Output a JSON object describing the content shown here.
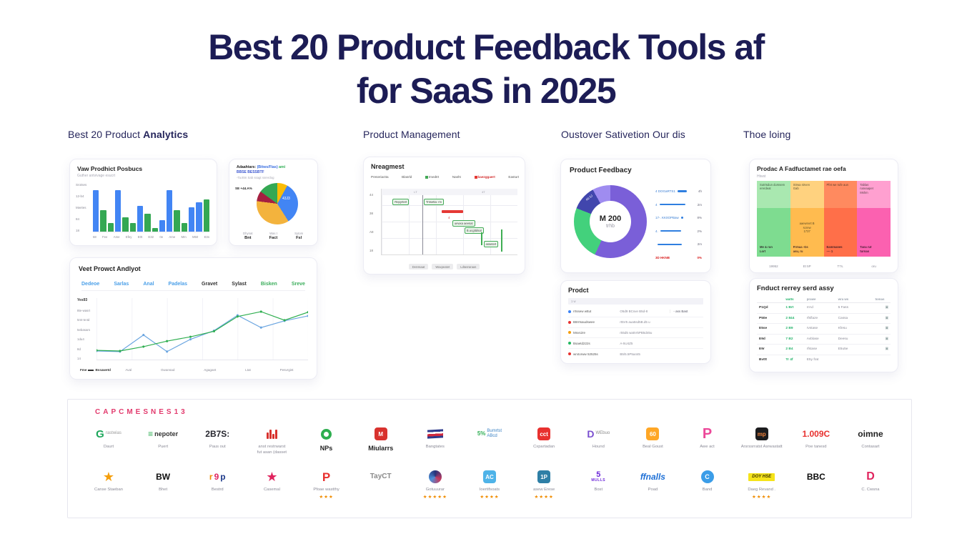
{
  "title": {
    "line1": "Best 20 Product Feedback Tools af",
    "line2": "for SaaS in 2025"
  },
  "colors": {
    "title_navy": "#1c1c55",
    "bar_blue": "#4285f4",
    "bar_green": "#34a853",
    "logo_header_pink": "#e23a6d"
  },
  "headers": [
    {
      "pre": "Best 20 Product ",
      "bold": "Analytics"
    },
    {
      "pre": "Product Management",
      "bold": ""
    },
    {
      "pre": "Oustover Sativetion Our dis",
      "bold": ""
    },
    {
      "pre": "Thoe loing",
      "bold": ""
    }
  ],
  "bar_card": {
    "title": "Vaw Prodhict Posbucs",
    "subtitle": "Guther antvivage esucrt"
  },
  "pie_card": {
    "t1a": "Adaahtars:",
    "t1b": "(Bitws/Fias)",
    "t1c": "ami",
    "t2": "BBSE BESSBTF",
    "subtitle": "-Ta.8tm Sab ssagt ssrerdog",
    "side_label": "SE +44.A%",
    "inner_label": "43J3",
    "stats": [
      {
        "label": "Dhynat",
        "value": "Bnt"
      },
      {
        "label": "Was t",
        "value": "Fact"
      },
      {
        "label": "Sytom",
        "value": "Fsl"
      }
    ]
  },
  "line_card": {
    "title": "Veet Prowct Andlyot",
    "tabs": [
      {
        "label": "Dedeoe",
        "color": "blue"
      },
      {
        "label": "Sarlas",
        "color": "blue"
      },
      {
        "label": "Anal",
        "color": "blue"
      },
      {
        "label": "Padelas",
        "color": "blue"
      },
      {
        "label": "Gravet",
        "color": "dark"
      },
      {
        "label": "Sylast",
        "color": "dark"
      },
      {
        "label": "Bisken",
        "color": "green"
      },
      {
        "label": "Sreve",
        "color": "green"
      }
    ],
    "legend_prefix": "Fme",
    "legend": "Bssawetd"
  },
  "gantt_card": {
    "title": "Nreagmest",
    "legend": [
      {
        "label": "Preseriactta"
      },
      {
        "label": "Blasrld"
      },
      {
        "label": "Imedtrt",
        "square": "#43a957"
      },
      {
        "label": "Nasht"
      },
      {
        "label": "baezggaert",
        "square": "#e53935",
        "red": true
      },
      {
        "label": "Easturt"
      }
    ],
    "band": [
      "LT",
      "4T"
    ],
    "y_labels": [
      "44",
      "38",
      "A8",
      "18"
    ],
    "chips": [
      "Repyrtert",
      "Trssetta: rrv",
      "uewxa aeesat",
      "B.ucgttdsat",
      "assetert"
    ],
    "red_label": "4",
    "bottom": [
      "Denssaat",
      "Waxpeatet",
      "Ldtasraraas"
    ]
  },
  "donut_card": {
    "title": "Product Feedbacy",
    "center_value": "M 200",
    "center_sub": "trhb",
    "seg_label": "Ab 5J",
    "rows": [
      {
        "pre": "4",
        "label": "DOGaRTS1",
        "bar": 58,
        "pct": "4h",
        "red": false
      },
      {
        "pre": "4",
        "label": "",
        "bar": 76,
        "pct": "2m",
        "red": false
      },
      {
        "pre": "17-.",
        "label": "KK0OPBaw",
        "bar": 20,
        "pct": "8%",
        "red": false
      },
      {
        "pre": "4.",
        "label": "",
        "bar": 64,
        "pct": "2%",
        "red": false
      },
      {
        "pre": "",
        "label": "",
        "bar": 68,
        "pct": "2m",
        "red": false
      },
      {
        "pre": "3D",
        "label": "HKNB",
        "bar": 0,
        "pct": "0%",
        "red": true
      }
    ]
  },
  "ptable_card": {
    "title": "Prodct",
    "header": "1 w",
    "rows": [
      {
        "dot": "#3b82f6",
        "left": "rrtssew wttut",
        "mid": "O5d9 BCsve B5d-8",
        "right": "- ass Bast"
      },
      {
        "dot": "#e8312f",
        "left": "B8rrtsaudswee",
        "mid": "rt5V5 aua5sd5B.d5 u",
        "right": ""
      },
      {
        "dot": "#f59e0b",
        "left": "Msvs2re",
        "mid": "r55d5 wa5V5PB5d45u",
        "right": ""
      },
      {
        "dot": "#22b860",
        "left": "Bsaetd222s",
        "mid": "A-5U4Z5",
        "right": ""
      },
      {
        "dot": "#e8312f",
        "left": "wrxtorww 52525s",
        "mid": "B5/5.5P5a445",
        "right": ""
      }
    ]
  },
  "matrix_card": {
    "title": "Prodac A Fadfuctamet rae oefa",
    "subtitle": "Htwst",
    "columns": [
      {
        "light": "#a9e8b0",
        "strong": "#7edc90",
        "top": "Sutrtsdun durssem\nererdeat",
        "mid": "",
        "bottom": "Me & run\nLort"
      },
      {
        "light": "#ffd27f",
        "strong": "#ffbb4f",
        "top": "Strwa strven\nGab",
        "mid": "aaewnvrt B\nscrew\n1737",
        "bottom": "Frmua -Gs\nasu, ru"
      },
      {
        "light": "#ff8a5f",
        "strong": "#ff6f49",
        "top": "Pfet we rufe aun",
        "mid": "",
        "bottom": "Eammanes\n-~- 1"
      },
      {
        "light": "#ffa0d0",
        "strong": "#fb61b0",
        "top": "Tablas\nruseaapet\nMshm",
        "mid": "",
        "bottom": "Tana rut\nturnas"
      }
    ],
    "axis": [
      "19952",
      "Et 5P",
      "T7s.",
      "oru"
    ]
  },
  "review_card": {
    "title": "Fnduct rerrey serd assy",
    "headers": [
      "",
      "watts",
      "prawe",
      "wra ws",
      "tomas"
    ],
    "rows": [
      [
        "P1Qd",
        "1 Brt",
        "rrAd",
        "5 Fass",
        "▣"
      ],
      [
        "P50e",
        "2 844",
        "rfsflaze",
        "Cassa",
        "▣"
      ],
      [
        "E5se",
        "2 B9",
        "rvstase",
        "Kfesu",
        "▣"
      ],
      [
        "E9d",
        "7 B2",
        "Avblase",
        "Deesu",
        "▣"
      ],
      [
        "E9r",
        "2 B4",
        "rfstase",
        "E5u5e",
        "▣"
      ],
      [
        "Bvttt",
        "Tr 4f",
        "E5y frat",
        "",
        ""
      ]
    ]
  },
  "logo_wall": {
    "header": "CAPCMESNES13",
    "row1": [
      {
        "type": "letterext",
        "icon": "green-g-logo-icon",
        "main": "G",
        "main_color": "#1ea75c",
        "main_size": 15,
        "extra": "rastwias",
        "extra_color": "#9a9a9a",
        "caption": "Daurt"
      },
      {
        "type": "letterext",
        "icon": "hamburger-lines-icon",
        "main": "≡",
        "main_color": "#2fae54",
        "main_size": 12,
        "extra": "nepoter",
        "extra_bold": true,
        "caption": "Puert"
      },
      {
        "type": "plain",
        "icon": "abts-text-logo",
        "main": "2B7S:",
        "color": "#26262e",
        "size": 12,
        "caption": "Paus out"
      },
      {
        "type": "bars",
        "icon": "red-bars-icon",
        "caption": "anst restrwarst\nfut asan (dasset"
      },
      {
        "type": "ring",
        "icon": "green-ring-icon",
        "caption": "NPs",
        "caption_big": true
      },
      {
        "type": "square",
        "icon": "red-m-square-icon",
        "main": "M",
        "bg": "#d8322e",
        "caption": "Miularrs",
        "caption_big": true
      },
      {
        "type": "flag",
        "icon": "striped-flag-icon",
        "caption": "Bangtates"
      },
      {
        "type": "letterext",
        "icon": "percent-badge-icon",
        "main": "5%",
        "main_color": "#2fae54",
        "main_size": 8,
        "extra": "Bumrtst\nABcd",
        "extra_color": "#3b82c4",
        "caption": ""
      },
      {
        "type": "square",
        "icon": "cct-square-icon",
        "main": "cct",
        "bg": "#e8312f",
        "caption": "Cxpartadan"
      },
      {
        "type": "letterext",
        "icon": "purple-d-logo-icon",
        "main": "D",
        "main_color": "#7a4fd0",
        "main_size": 14,
        "extra": "WEbuo",
        "extra_color": "#8a8a8a",
        "caption": "Hound"
      },
      {
        "type": "square",
        "icon": "orange-square-icon",
        "main": "60",
        "bg": "#ffa726",
        "caption": "Beal Goust"
      },
      {
        "type": "plain",
        "icon": "pink-p-logo-icon",
        "main": "P",
        "color": "#ec4899",
        "size": 20,
        "caption": "Awe act"
      },
      {
        "type": "square",
        "icon": "mp-square-icon",
        "main": "mp",
        "bg": "#1c1c1e",
        "fg": "#f0823c",
        "caption": "Arsrssrratst Asrwastatt"
      },
      {
        "type": "plain",
        "icon": "1009c-text-logo",
        "main": "1.009C",
        "color": "#e8312f",
        "size": 12,
        "caption": "Poe tanesd"
      },
      {
        "type": "plain",
        "icon": "oimne-text-logo",
        "main": "oimne",
        "color": "#1f1f1f",
        "size": 12,
        "caption": "Contasart"
      }
    ],
    "row2": [
      {
        "type": "star",
        "icon": "orange-star-icon",
        "color": "#f59e0b",
        "caption": "Canse Staeban"
      },
      {
        "type": "plain",
        "icon": "bw-text-logo",
        "main": "BW",
        "color": "#111111",
        "size": 12,
        "caption": "Bhet"
      },
      {
        "type": "multi",
        "icon": "rgp-text-logo",
        "letters": [
          [
            "r",
            "#f08c00"
          ],
          [
            "9",
            "#e0245e"
          ],
          [
            "p",
            "#1e3a8a"
          ]
        ],
        "caption": "Bestrd"
      },
      {
        "type": "star",
        "icon": "red-star-icon",
        "color": "#e0245e",
        "caption": "Casemal"
      },
      {
        "type": "plain",
        "icon": "red-p-logo-icon",
        "main": "P",
        "color": "#e8312f",
        "size": 17,
        "caption": "Pfoae wastthy",
        "stars": 3
      },
      {
        "type": "plain",
        "icon": "tayct-text-logo",
        "main": "TayCT",
        "color": "#8a8a8a",
        "size": 10,
        "caption": ""
      },
      {
        "type": "swirl",
        "icon": "swirl-circle-icon",
        "caption": "Gotuuurar",
        "stars": 5
      },
      {
        "type": "square",
        "icon": "ac-square-icon",
        "main": "AC",
        "bg": "#4fb3e8",
        "caption": "Ioertifsoats",
        "stars": 4
      },
      {
        "type": "square",
        "icon": "1p-square-icon",
        "main": "1P",
        "bg": "#2e7fa6",
        "caption": "asew Erese",
        "stars": 4
      },
      {
        "type": "stack",
        "icon": "5mulls-text-logo",
        "main": "5",
        "sub": "MULLS",
        "color": "#6d28d9",
        "caption": "Bost"
      },
      {
        "type": "plain",
        "icon": "fmalls-text-logo",
        "main": "ffnalls",
        "color": "#1d6fd6",
        "size": 12,
        "italic": true,
        "caption": "Poad"
      },
      {
        "type": "circle",
        "icon": "blue-c-circle-icon",
        "main": "C",
        "bg": "#3b9de8",
        "caption": "Band"
      },
      {
        "type": "badge",
        "icon": "yellow-badge-icon",
        "main": "DOY HSE",
        "bg": "#f5e31a",
        "fg": "#3d3400",
        "caption": "Daeg Revand .",
        "stars": 4
      },
      {
        "type": "plain",
        "icon": "bbc-text-logo",
        "main": "BBC",
        "color": "#0a0a0a",
        "size": 12,
        "caption": ""
      },
      {
        "type": "plain",
        "icon": "pink-d-logo-icon",
        "main": "D",
        "color": "#e0245e",
        "size": 16,
        "caption": "C. Cwsna"
      }
    ]
  },
  "chart_data": [
    {
      "id": "grouped-bars",
      "type": "bar",
      "title": "Vaw Prodhict Posbucs",
      "series_colors": {
        "blue": "#4285f4",
        "green": "#34a853"
      },
      "bars": [
        [
          "blue",
          88
        ],
        [
          "green",
          45
        ],
        [
          "green",
          18
        ],
        [
          "blue",
          88
        ],
        [
          "green",
          30
        ],
        [
          "green",
          18
        ],
        [
          "blue",
          55
        ],
        [
          "green",
          38
        ],
        [
          "green",
          8
        ],
        [
          "blue",
          25
        ],
        [
          "blue",
          88
        ],
        [
          "green",
          45
        ],
        [
          "green",
          18
        ],
        [
          "blue",
          52
        ],
        [
          "blue",
          62
        ],
        [
          "green",
          68
        ]
      ],
      "y_labels": [
        "Srotses",
        "12-b4",
        "Mwrtes",
        "84",
        "18"
      ],
      "x_labels": [
        "68",
        "Fee",
        "Ame",
        "Efey",
        "E0t",
        "E32",
        "0e",
        "Ame",
        "Mm",
        "M50",
        "E3s"
      ],
      "ylim": [
        0,
        100
      ]
    },
    {
      "id": "pie",
      "type": "pie",
      "title": "Adaahtars: (Bitws/Fias) ami",
      "segments": [
        {
          "label": "yellow-top",
          "color": "#fbbc05",
          "pct": 8
        },
        {
          "label": "blue",
          "color": "#4285f4",
          "pct": 33
        },
        {
          "label": "amber",
          "color": "#f3b33d",
          "pct": 36
        },
        {
          "label": "dark-red",
          "color": "#a52040",
          "pct": 8
        },
        {
          "label": "green",
          "color": "#34a853",
          "pct": 15
        }
      ]
    },
    {
      "id": "lines",
      "type": "line",
      "title": "Veet Prowct Andlyot",
      "series": [
        {
          "name": "blue",
          "color": "#6aa5e0",
          "values": [
            14,
            13,
            40,
            13,
            33,
            47,
            72,
            52,
            63,
            71
          ]
        },
        {
          "name": "green",
          "color": "#2eae4f",
          "values": [
            15,
            14,
            21,
            30,
            37,
            46,
            70,
            78,
            64,
            77
          ]
        }
      ],
      "y_labels": [
        "Yes93",
        "8te-wasrt",
        "5mt-te4d",
        "5ebasars",
        "1du4",
        "8d",
        "14"
      ],
      "x_labels": [
        "Aval",
        "Gwansad",
        "Agagant",
        "Ltat",
        "Pesvrgist"
      ],
      "ylim": [
        0,
        100
      ]
    },
    {
      "id": "donut",
      "type": "pie",
      "title": "Product Feedbacy",
      "center_value": "M 200",
      "segments": [
        {
          "label": "purple",
          "color": "#7a5fd8",
          "pct": 57
        },
        {
          "label": "green",
          "color": "#43d17c",
          "pct": 24
        },
        {
          "label": "indigo",
          "color": "#4146ad",
          "pct": 11
        },
        {
          "label": "lavender",
          "color": "#9f8cf0",
          "pct": 8
        }
      ]
    }
  ]
}
